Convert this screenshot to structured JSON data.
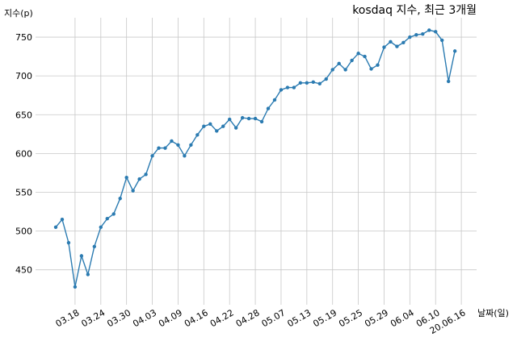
{
  "chart_data": {
    "type": "line",
    "title": "kosdaq 지수, 최근 3개월",
    "xlabel": "날짜(일)",
    "ylabel": "지수(p)",
    "ylim": [
      405,
      775
    ],
    "yticks": [
      450,
      500,
      550,
      600,
      650,
      700,
      750
    ],
    "grid": true,
    "x_tick_labels": [
      "03.18",
      "03.24",
      "03.30",
      "04.03",
      "04.09",
      "04.16",
      "04.22",
      "04.28",
      "05.07",
      "05.13",
      "05.19",
      "05.25",
      "05.29",
      "06.04",
      "06.10",
      "20.06.16"
    ],
    "x_tick_positions": [
      3,
      7,
      11,
      15,
      19,
      23,
      27,
      31,
      35,
      39,
      43,
      47,
      51,
      55,
      59,
      63
    ],
    "series": [
      {
        "values": [
          505,
          515,
          485,
          428,
          468,
          444,
          480,
          505,
          516,
          522,
          542,
          569,
          552,
          567,
          573,
          597,
          607,
          607,
          616,
          611,
          597,
          611,
          624,
          635,
          638,
          629,
          635,
          644,
          633,
          646,
          645,
          645,
          641,
          658,
          669,
          682,
          685,
          685,
          691,
          691,
          692,
          690,
          696,
          708,
          716,
          708,
          720,
          729,
          725,
          709,
          714,
          737,
          744,
          738,
          743,
          750,
          753,
          754,
          759,
          757,
          746,
          693,
          732
        ]
      }
    ]
  }
}
